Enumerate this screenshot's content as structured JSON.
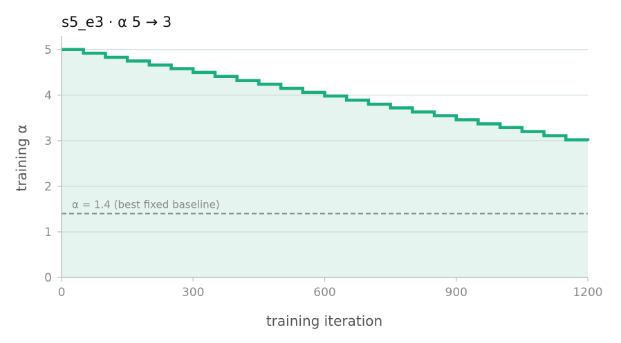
{
  "chart_data": {
    "type": "line",
    "title": "s5_e3   ·   α 5 → 3",
    "xlabel": "training iteration",
    "ylabel": "training α",
    "xlim": [
      0,
      1200
    ],
    "ylim": [
      0,
      5.3
    ],
    "xticks": [
      0,
      300,
      600,
      900,
      1200
    ],
    "yticks": [
      0,
      1,
      2,
      3,
      4,
      5
    ],
    "grid": "horizontal",
    "series": [
      {
        "step": "post",
        "color": "#1aae7c",
        "fill_color": "#e5f4ee",
        "x": [
          0,
          50,
          100,
          150,
          200,
          250,
          300,
          350,
          400,
          450,
          500,
          550,
          600,
          650,
          700,
          750,
          800,
          850,
          900,
          950,
          1000,
          1050,
          1100,
          1150,
          1200
        ],
        "values": [
          5.0,
          4.92,
          4.83,
          4.75,
          4.66,
          4.58,
          4.5,
          4.41,
          4.32,
          4.24,
          4.15,
          4.06,
          3.98,
          3.89,
          3.8,
          3.72,
          3.63,
          3.55,
          3.46,
          3.37,
          3.29,
          3.2,
          3.11,
          3.02,
          3.0
        ]
      }
    ],
    "reference_line": {
      "y": 1.4,
      "label": "α = 1.4 (best fixed baseline)",
      "style": "dashed",
      "color": "#888888"
    },
    "colors": {
      "grid": "#cfe0d2",
      "axis": "#bcc4bc"
    }
  }
}
